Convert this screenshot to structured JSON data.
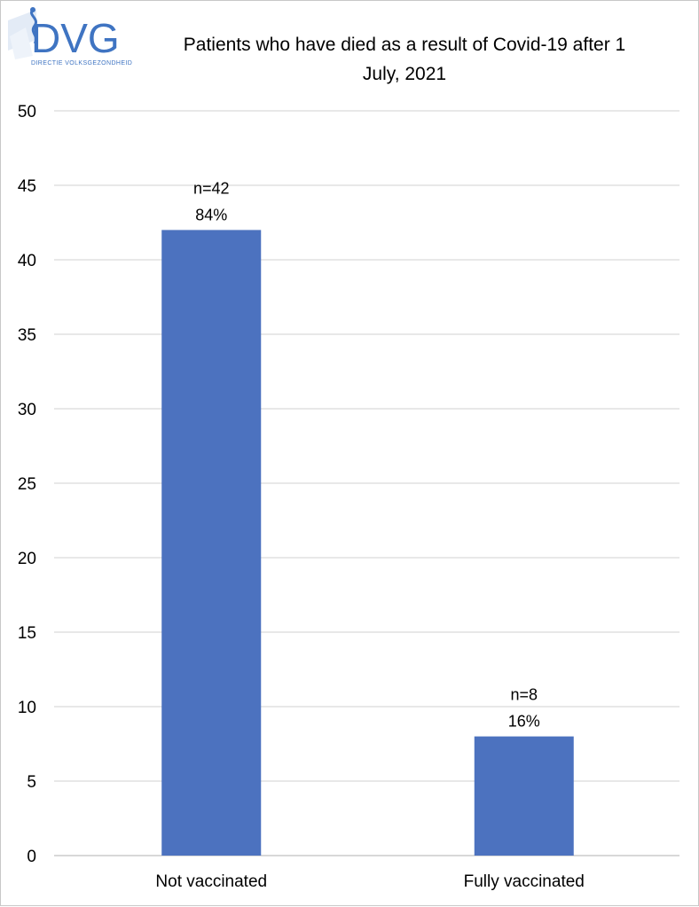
{
  "logo": {
    "text": "DVG",
    "tagline": "DIRECTIE VOLKSGEZONDHEID"
  },
  "colors": {
    "bar": "#4c72bf",
    "grid": "#d9d9d9",
    "axis_text": "#000000",
    "logo_blue": "#3f74c2",
    "logo_light": "#dbe6f4"
  },
  "chart_data": {
    "type": "bar",
    "title_lines": [
      "Patients who have died as a result of Covid-19 after 1",
      "July, 2021"
    ],
    "categories": [
      "Not vaccinated",
      "Fully vaccinated"
    ],
    "values": [
      42,
      8
    ],
    "data_labels": [
      [
        "n=42",
        "84%"
      ],
      [
        "n=8",
        "16%"
      ]
    ],
    "ylim": [
      0,
      50
    ],
    "yticks": [
      0,
      5,
      10,
      15,
      20,
      25,
      30,
      35,
      40,
      45,
      50
    ],
    "grid": true,
    "legend": "none"
  }
}
